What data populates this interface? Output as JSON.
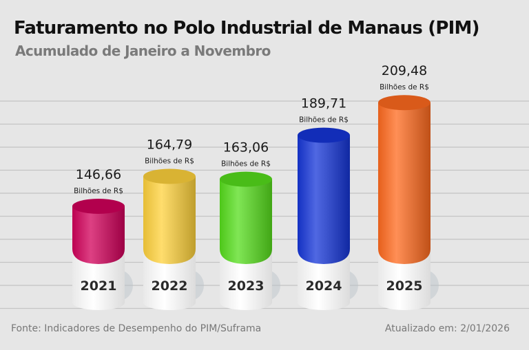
{
  "chart_data": {
    "type": "bar",
    "title": "Faturamento no Polo Industrial de Manaus (PIM)",
    "subtitle": "Acumulado de Janeiro a Novembro",
    "categories": [
      "2021",
      "2022",
      "2023",
      "2024",
      "2025"
    ],
    "values": [
      146.66,
      164.79,
      163.06,
      189.71,
      209.48
    ],
    "value_labels": [
      "146,66",
      "164,79",
      "163,06",
      "189,71",
      "209,48"
    ],
    "unit_label": "Bilhões de R$",
    "colors": [
      "#d1005a",
      "#ffd23c",
      "#56dd1c",
      "#1535d8",
      "#ff6a1e"
    ],
    "grid": true
  },
  "footer": {
    "source": "Fonte: Indicadores de Desempenho do PIM/Suframa",
    "updated": "Atualizado em: 2/01/2026"
  }
}
